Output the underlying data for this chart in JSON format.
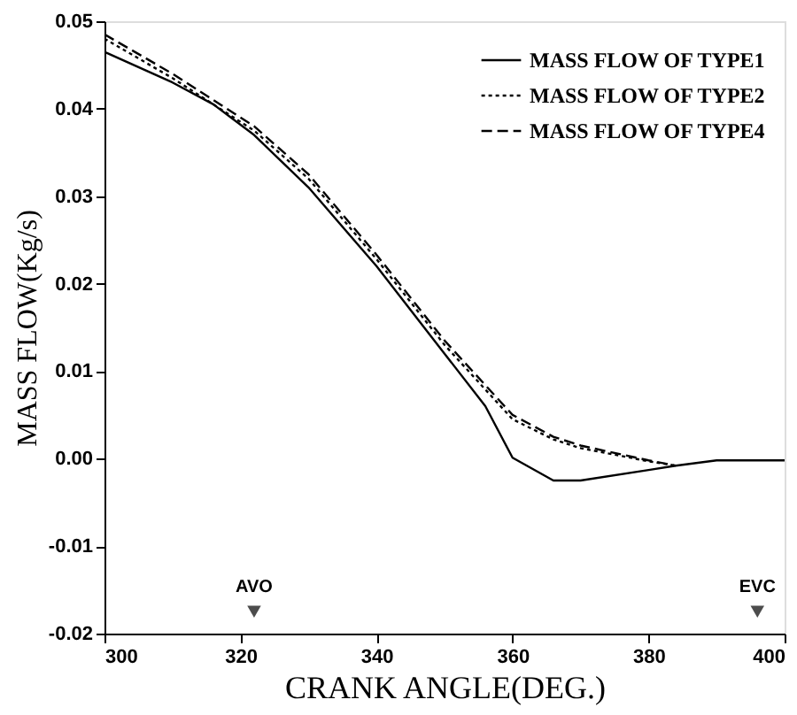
{
  "chart_data": {
    "type": "line",
    "xlabel": "CRANK ANGLE(DEG.)",
    "ylabel": "MASS FLOW(Kg/s)",
    "xlim": [
      300,
      400
    ],
    "xticks": [
      300,
      320,
      340,
      360,
      380,
      400
    ],
    "ylim": [
      -0.02,
      0.05
    ],
    "yticks": [
      {
        "value": -0.02,
        "label": "-0.02"
      },
      {
        "value": -0.01,
        "label": "-0.01"
      },
      {
        "value": 0,
        "label": "0.00"
      },
      {
        "value": 0.01,
        "label": "0.01"
      },
      {
        "value": 0.02,
        "label": "0.02"
      },
      {
        "value": 0.03,
        "label": "0.03"
      },
      {
        "value": 0.04,
        "label": "0.04"
      },
      {
        "value": 0.05,
        "label": "0.05"
      }
    ],
    "grid": false,
    "legend": "top right",
    "series": [
      {
        "name": "MASS FLOW OF TYPE1",
        "color": "#000000",
        "line_style": "solid",
        "x": [
          300,
          310,
          316,
          322,
          330,
          340,
          350,
          356,
          360,
          366,
          370,
          380,
          384,
          390,
          400
        ],
        "values": [
          0.0465,
          0.043,
          0.0405,
          0.037,
          0.031,
          0.022,
          0.012,
          0.006,
          0.0001,
          -0.0025,
          -0.0025,
          -0.0013,
          -0.0008,
          -0.0002,
          -0.0002
        ]
      },
      {
        "name": "MASS FLOW OF TYPE2",
        "color": "#000000",
        "line_style": "dotted",
        "x": [
          300,
          310,
          316,
          322,
          330,
          340,
          350,
          360,
          366,
          370,
          380,
          384
        ],
        "values": [
          0.048,
          0.0435,
          0.0405,
          0.0375,
          0.032,
          0.0228,
          0.013,
          0.0045,
          0.0022,
          0.0012,
          -0.0003,
          -0.0008
        ]
      },
      {
        "name": "MASS FLOW OF TYPE4",
        "color": "#000000",
        "line_style": "dashed",
        "x": [
          300,
          310,
          316,
          322,
          330,
          340,
          350,
          360,
          366,
          370,
          380,
          384
        ],
        "values": [
          0.0485,
          0.044,
          0.041,
          0.038,
          0.0325,
          0.0233,
          0.0135,
          0.005,
          0.0025,
          0.0015,
          -0.0002,
          -0.0008
        ]
      }
    ],
    "annotations": [
      {
        "text": "AVO",
        "x": 322,
        "y": -0.0175
      },
      {
        "text": "EVC",
        "x": 396,
        "y": -0.0175
      }
    ]
  }
}
